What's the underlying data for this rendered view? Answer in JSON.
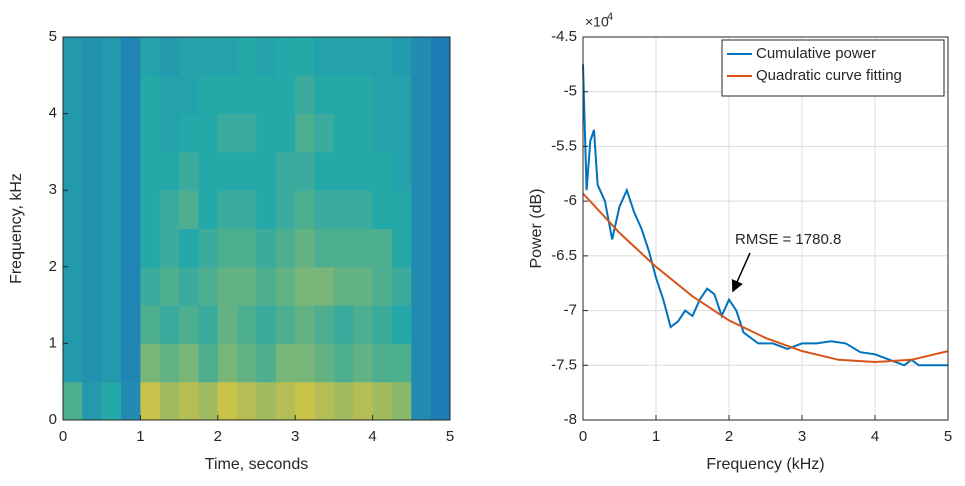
{
  "chart_data": [
    {
      "type": "heatmap",
      "xlabel": "Time, seconds",
      "ylabel": "Frequency, kHz",
      "xlim": [
        0,
        5
      ],
      "ylim": [
        0,
        5
      ],
      "xticks": [
        0,
        1,
        2,
        3,
        4,
        5
      ],
      "yticks": [
        0,
        1,
        2,
        3,
        4,
        5
      ],
      "colormap": [
        "#1a5fc0",
        "#25a8a8",
        "#f2c830"
      ],
      "z": [
        [
          0.6,
          0.4,
          0.5,
          0.3,
          0.9,
          0.8,
          0.85,
          0.8,
          0.9,
          0.85,
          0.8,
          0.85,
          0.9,
          0.85,
          0.8,
          0.85,
          0.8,
          0.75,
          0.3,
          0.2
        ],
        [
          0.4,
          0.35,
          0.4,
          0.25,
          0.7,
          0.65,
          0.7,
          0.6,
          0.7,
          0.65,
          0.6,
          0.7,
          0.7,
          0.65,
          0.6,
          0.65,
          0.6,
          0.6,
          0.3,
          0.2
        ],
        [
          0.4,
          0.35,
          0.4,
          0.25,
          0.6,
          0.55,
          0.6,
          0.55,
          0.65,
          0.6,
          0.55,
          0.6,
          0.65,
          0.6,
          0.55,
          0.6,
          0.55,
          0.5,
          0.3,
          0.2
        ],
        [
          0.4,
          0.35,
          0.4,
          0.25,
          0.55,
          0.6,
          0.55,
          0.6,
          0.65,
          0.65,
          0.6,
          0.65,
          0.7,
          0.7,
          0.65,
          0.65,
          0.6,
          0.55,
          0.3,
          0.2
        ],
        [
          0.4,
          0.35,
          0.4,
          0.25,
          0.5,
          0.55,
          0.5,
          0.55,
          0.6,
          0.6,
          0.55,
          0.6,
          0.65,
          0.6,
          0.6,
          0.6,
          0.6,
          0.5,
          0.3,
          0.2
        ],
        [
          0.4,
          0.35,
          0.4,
          0.25,
          0.5,
          0.55,
          0.6,
          0.5,
          0.55,
          0.55,
          0.5,
          0.55,
          0.6,
          0.55,
          0.55,
          0.55,
          0.5,
          0.5,
          0.3,
          0.2
        ],
        [
          0.4,
          0.35,
          0.4,
          0.25,
          0.5,
          0.5,
          0.55,
          0.5,
          0.5,
          0.5,
          0.5,
          0.55,
          0.55,
          0.5,
          0.5,
          0.5,
          0.5,
          0.45,
          0.3,
          0.2
        ],
        [
          0.4,
          0.35,
          0.4,
          0.25,
          0.5,
          0.45,
          0.5,
          0.5,
          0.55,
          0.55,
          0.5,
          0.5,
          0.6,
          0.55,
          0.5,
          0.5,
          0.45,
          0.45,
          0.3,
          0.2
        ],
        [
          0.4,
          0.35,
          0.4,
          0.25,
          0.5,
          0.45,
          0.45,
          0.5,
          0.5,
          0.5,
          0.5,
          0.5,
          0.55,
          0.5,
          0.5,
          0.5,
          0.45,
          0.45,
          0.3,
          0.2
        ],
        [
          0.4,
          0.35,
          0.4,
          0.25,
          0.45,
          0.4,
          0.45,
          0.45,
          0.45,
          0.5,
          0.45,
          0.5,
          0.5,
          0.45,
          0.45,
          0.45,
          0.45,
          0.4,
          0.3,
          0.2
        ]
      ]
    },
    {
      "type": "line",
      "xlabel": "Frequency (kHz)",
      "ylabel": "Power (dB)",
      "y_multiplier": "×10",
      "y_exponent": "4",
      "xlim": [
        0,
        5
      ],
      "ylim": [
        -8,
        -4.5
      ],
      "xticks": [
        0,
        1,
        2,
        3,
        4,
        5
      ],
      "yticks": [
        -8,
        -7.5,
        -7,
        -6.5,
        -6,
        -5.5,
        -5,
        -4.5
      ],
      "grid": true,
      "legend": "top-right",
      "annotation": "RMSE = 1780.8",
      "series": [
        {
          "name": "Cumulative power",
          "color": "#0072bd",
          "x": [
            0,
            0.05,
            0.1,
            0.15,
            0.2,
            0.3,
            0.4,
            0.5,
            0.6,
            0.7,
            0.8,
            0.9,
            1.0,
            1.1,
            1.2,
            1.3,
            1.4,
            1.5,
            1.6,
            1.7,
            1.8,
            1.9,
            2.0,
            2.1,
            2.2,
            2.3,
            2.4,
            2.6,
            2.8,
            3.0,
            3.2,
            3.4,
            3.6,
            3.8,
            4.0,
            4.2,
            4.4,
            4.5,
            4.6,
            4.8,
            5.0
          ],
          "values": [
            -4.75,
            -5.9,
            -5.45,
            -5.35,
            -5.85,
            -6.0,
            -6.35,
            -6.05,
            -5.9,
            -6.1,
            -6.25,
            -6.45,
            -6.7,
            -6.9,
            -7.15,
            -7.1,
            -7.0,
            -7.05,
            -6.9,
            -6.8,
            -6.85,
            -7.05,
            -6.9,
            -7.0,
            -7.2,
            -7.25,
            -7.3,
            -7.3,
            -7.35,
            -7.3,
            -7.3,
            -7.28,
            -7.3,
            -7.38,
            -7.4,
            -7.45,
            -7.5,
            -7.45,
            -7.5,
            -7.5,
            -7.5
          ]
        },
        {
          "name": "Quadratic curve fitting",
          "color": "#d95319",
          "x": [
            0,
            0.5,
            1,
            1.5,
            2,
            2.5,
            3,
            3.5,
            4,
            4.5,
            5
          ],
          "values": [
            -5.93,
            -6.29,
            -6.6,
            -6.87,
            -7.09,
            -7.25,
            -7.37,
            -7.45,
            -7.47,
            -7.45,
            -7.37
          ]
        }
      ]
    }
  ]
}
